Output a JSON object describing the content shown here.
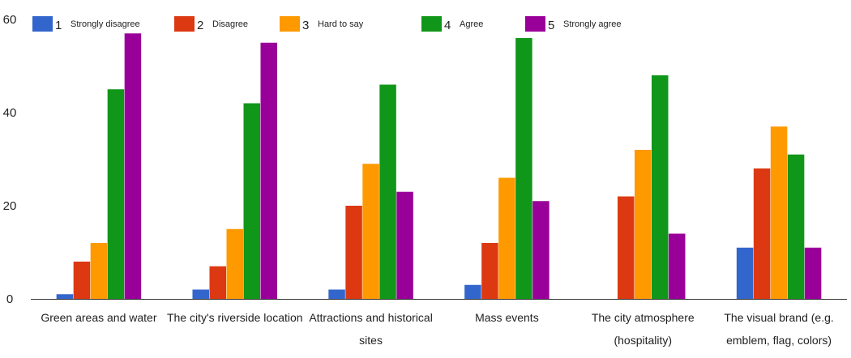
{
  "chart_data": {
    "type": "bar",
    "title": "",
    "xlabel": "",
    "ylabel": "",
    "ylim": [
      0,
      60
    ],
    "y_ticks": [
      "0",
      "20",
      "40",
      "60"
    ],
    "grid": false,
    "legend_position": "top",
    "categories": [
      [
        "Green areas and water"
      ],
      [
        "The city's riverside location"
      ],
      [
        "Attractions and historical",
        "sites"
      ],
      [
        "Mass events"
      ],
      [
        "The city atmosphere",
        "(hospitality)"
      ],
      [
        "The visual brand (e.g.",
        "emblem, flag, colors)"
      ]
    ],
    "series": [
      {
        "number": "1",
        "name": "Strongly disagree",
        "color": "#3366cc",
        "values": [
          1,
          2,
          2,
          3,
          0,
          11
        ]
      },
      {
        "number": "2",
        "name": "Disagree",
        "color": "#dc3912",
        "values": [
          8,
          7,
          20,
          12,
          22,
          28
        ]
      },
      {
        "number": "3",
        "name": "Hard to say",
        "color": "#ff9900",
        "values": [
          12,
          15,
          29,
          26,
          32,
          37
        ]
      },
      {
        "number": "4",
        "name": "Agree",
        "color": "#109618",
        "values": [
          45,
          42,
          46,
          56,
          48,
          31
        ]
      },
      {
        "number": "5",
        "name": "Strongly agree",
        "color": "#990099",
        "values": [
          57,
          55,
          23,
          21,
          14,
          11
        ]
      }
    ]
  }
}
